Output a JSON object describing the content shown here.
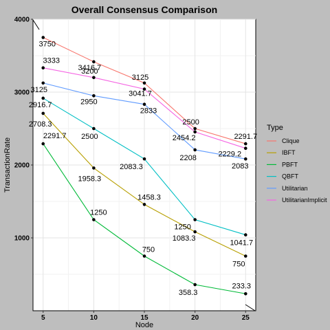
{
  "chart_data": {
    "type": "line",
    "title": "Overall Consensus Comparison",
    "xlabel": "Node",
    "ylabel": "TransactionRate",
    "x": [
      5,
      10,
      15,
      20,
      25
    ],
    "x_ticks": [
      "5",
      "10",
      "15",
      "20",
      "25"
    ],
    "y_ticks": [
      "1000",
      "2000",
      "3000",
      "4000"
    ],
    "xlim": [
      4,
      26
    ],
    "ylim": [
      0,
      4000
    ],
    "grid": true,
    "legend_title": "Type",
    "legend_position": "right",
    "series": [
      {
        "name": "Clique",
        "color": "#F8766D",
        "values": [
          3750,
          3416.7,
          3125,
          2500,
          2291.7
        ],
        "labels": [
          "3750",
          "3416.7",
          "3125",
          "2500",
          "2291.7"
        ]
      },
      {
        "name": "IBFT",
        "color": "#B79F00",
        "values": [
          2708.3,
          1958.3,
          1458.3,
          1083.3,
          750
        ],
        "labels": [
          "2708.3",
          "1958.3",
          "1458.3",
          "1083.3",
          "750"
        ]
      },
      {
        "name": "PBFT",
        "color": "#00BA38",
        "values": [
          2291.7,
          1250,
          750,
          358.3,
          233.3
        ],
        "labels": [
          "2291.7",
          "1250",
          "750",
          "358.3",
          "233.3"
        ]
      },
      {
        "name": "QBFT",
        "color": "#00BFC4",
        "values": [
          2916.7,
          2500,
          2083.3,
          1250,
          1041.7
        ],
        "labels": [
          "2916.7",
          "2500",
          "2083.3",
          "1250",
          "1041.7"
        ]
      },
      {
        "name": "Utilitarian",
        "color": "#619CFF",
        "values": [
          3125,
          2950,
          2833,
          2208,
          2083
        ],
        "labels": [
          "3125",
          "2950",
          "2833",
          "2208",
          "2083"
        ]
      },
      {
        "name": "UtilitarianImplicit",
        "color": "#F564E3",
        "values": [
          3333,
          3200,
          3041.7,
          2454.2,
          2229.2
        ],
        "labels": [
          "3333",
          "3200",
          "3041.7",
          "2454.2",
          "2229.2"
        ]
      }
    ]
  }
}
